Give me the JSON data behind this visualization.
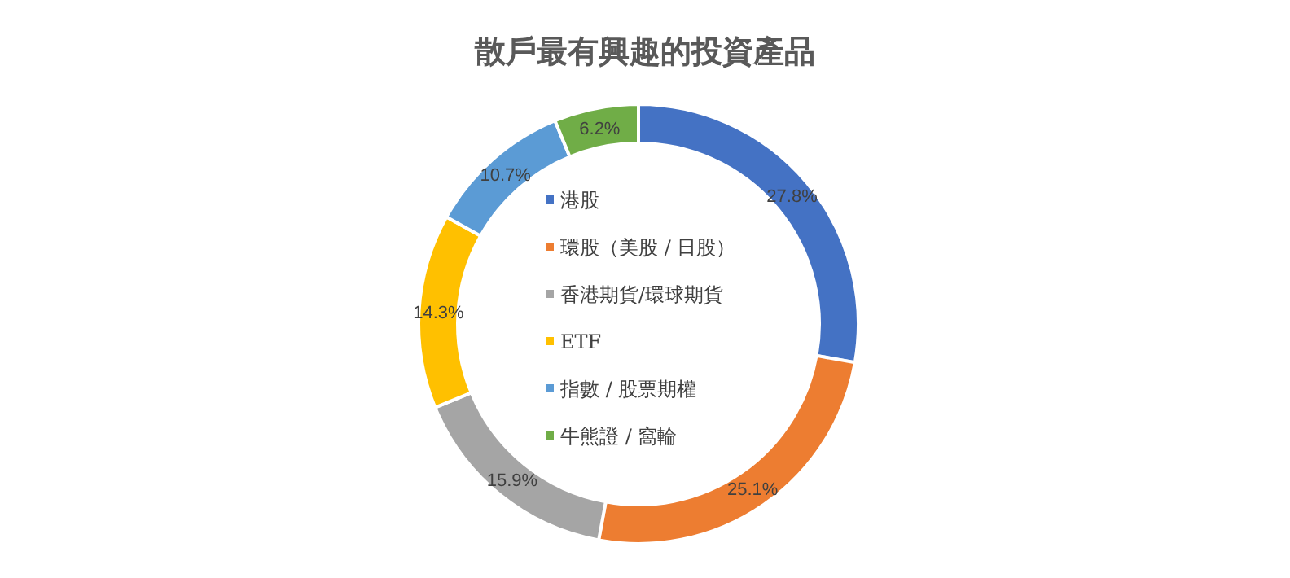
{
  "chart_data": {
    "type": "donut",
    "title": "散戶最有興趣的投資產品",
    "categories": [
      "港股",
      "環股（美股 / 日股）",
      "香港期貨/環球期貨",
      "ETF",
      "指數 / 股票期權",
      "牛熊證 / 窩輪"
    ],
    "values": [
      27.8,
      25.1,
      15.9,
      14.3,
      10.7,
      6.2
    ],
    "colors": [
      "#4472c4",
      "#ed7d31",
      "#a5a5a5",
      "#ffc000",
      "#5b9bd5",
      "#70ad47"
    ],
    "value_labels": [
      "27.8%",
      "25.1%",
      "15.9%",
      "14.3%",
      "10.7%",
      "6.2%"
    ],
    "legend": "center"
  }
}
